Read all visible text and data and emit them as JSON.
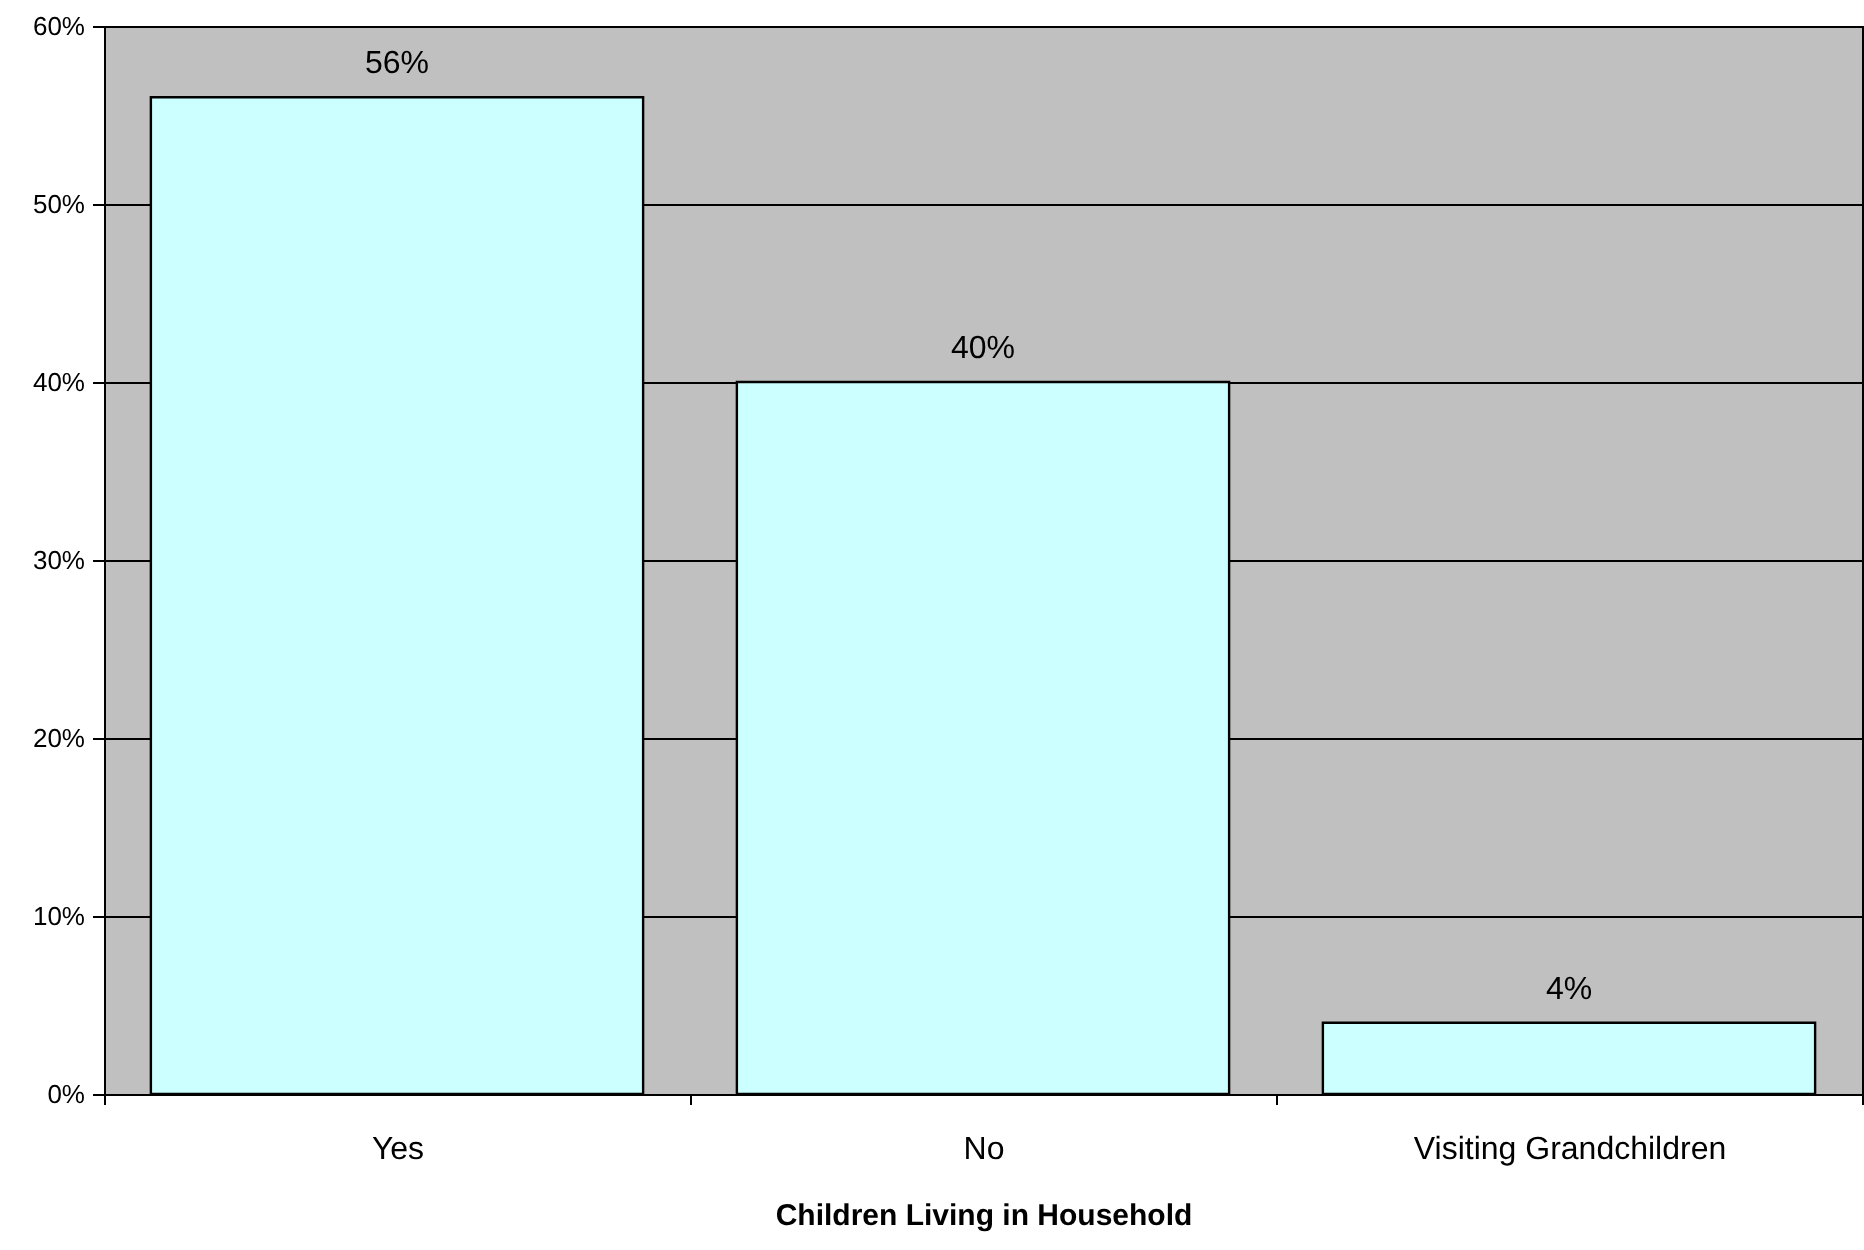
{
  "chart_data": {
    "type": "bar",
    "categories": [
      "Yes",
      "No",
      "Visiting Grandchildren"
    ],
    "values": [
      56,
      40,
      4
    ],
    "value_labels": [
      "56%",
      "40%",
      "4%"
    ],
    "color": "#ccffff",
    "xlabel": "Children Living in Household",
    "ylim": [
      0,
      60
    ],
    "yticks": [
      {
        "value": 0,
        "label": "0%"
      },
      {
        "value": 10,
        "label": "10%"
      },
      {
        "value": 20,
        "label": "20%"
      },
      {
        "value": 30,
        "label": "30%"
      },
      {
        "value": 40,
        "label": "40%"
      },
      {
        "value": 50,
        "label": "50%"
      },
      {
        "value": 60,
        "label": "60%"
      }
    ],
    "grid": "y"
  }
}
